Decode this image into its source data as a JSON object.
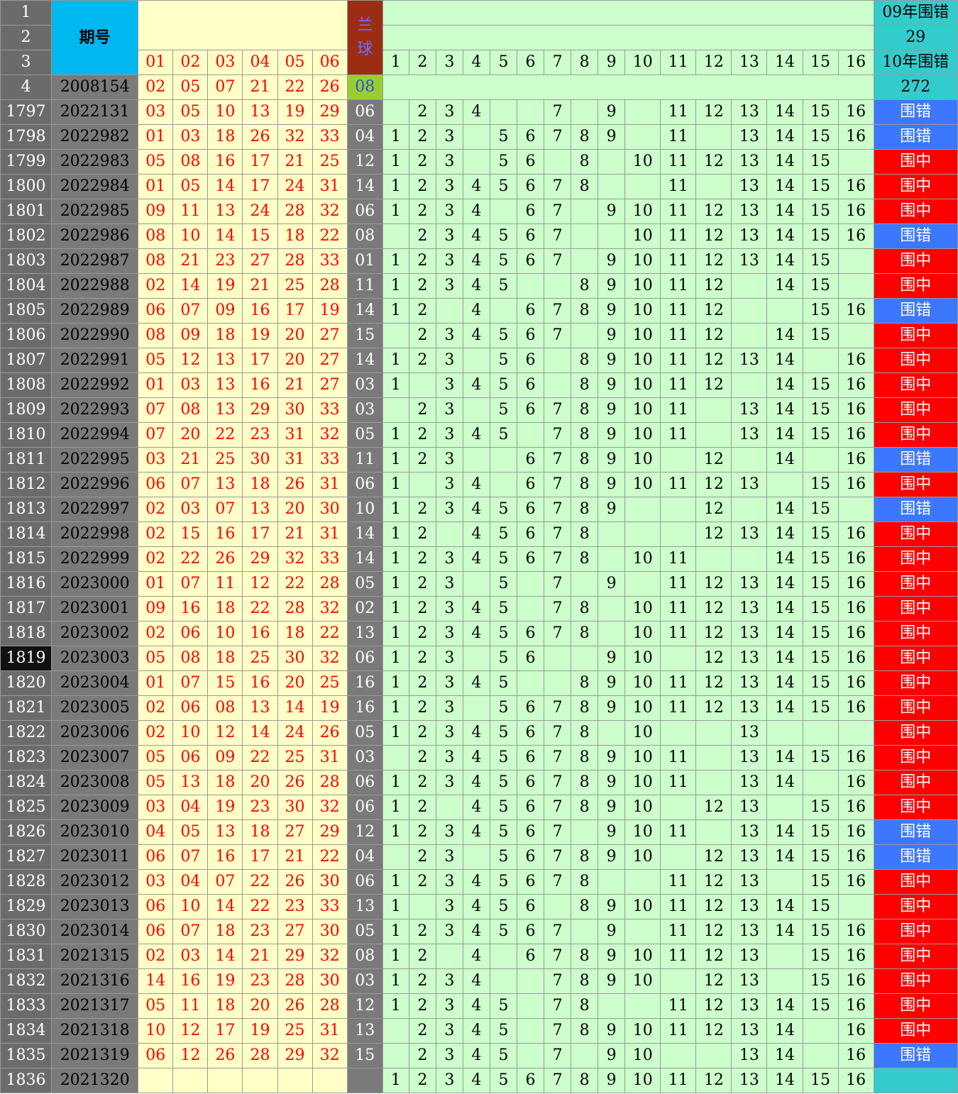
{
  "header": {
    "period_label": "期号",
    "blue_label": "兰球",
    "col_labels": [
      "01",
      "02",
      "03",
      "04",
      "05",
      "06"
    ],
    "num_labels": [
      "1",
      "2",
      "3",
      "4",
      "5",
      "6",
      "7",
      "8",
      "9",
      "10",
      "11",
      "12",
      "13",
      "14",
      "15",
      "16"
    ],
    "stat_2009_label": "09年围错",
    "stat_2009_value": "29",
    "stat_2010_label": "10年围错",
    "stat_2010_value": "272"
  },
  "row_numbers": [
    "1",
    "2",
    "3",
    "4"
  ],
  "first_row": {
    "period": "2008154",
    "reds": [
      "02",
      "05",
      "07",
      "21",
      "22",
      "26"
    ],
    "blue": "08"
  },
  "rows": [
    {
      "n": "1797",
      "period": "2022131",
      "reds": [
        "03",
        "05",
        "10",
        "13",
        "19",
        "29"
      ],
      "blue": "06",
      "nums": [
        "",
        "2",
        "3",
        "4",
        "",
        "",
        "7",
        "",
        "9",
        "",
        "11",
        "12",
        "13",
        "14",
        "15",
        "16"
      ],
      "status": "围错"
    },
    {
      "n": "1798",
      "period": "2022982",
      "reds": [
        "01",
        "03",
        "18",
        "26",
        "32",
        "33"
      ],
      "blue": "04",
      "nums": [
        "1",
        "2",
        "3",
        "",
        "5",
        "6",
        "7",
        "8",
        "9",
        "",
        "11",
        "",
        "13",
        "14",
        "15",
        "16"
      ],
      "status": "围错"
    },
    {
      "n": "1799",
      "period": "2022983",
      "reds": [
        "05",
        "08",
        "16",
        "17",
        "21",
        "25"
      ],
      "blue": "12",
      "nums": [
        "1",
        "2",
        "3",
        "",
        "5",
        "6",
        "",
        "8",
        "",
        "10",
        "11",
        "12",
        "13",
        "14",
        "15",
        ""
      ],
      "status": "围中"
    },
    {
      "n": "1800",
      "period": "2022984",
      "reds": [
        "01",
        "05",
        "14",
        "17",
        "24",
        "31"
      ],
      "blue": "14",
      "nums": [
        "1",
        "2",
        "3",
        "4",
        "5",
        "6",
        "7",
        "8",
        "",
        "",
        "11",
        "",
        "13",
        "14",
        "15",
        "16"
      ],
      "status": "围中"
    },
    {
      "n": "1801",
      "period": "2022985",
      "reds": [
        "09",
        "11",
        "13",
        "24",
        "28",
        "32"
      ],
      "blue": "06",
      "nums": [
        "1",
        "2",
        "3",
        "4",
        "",
        "6",
        "7",
        "",
        "9",
        "10",
        "11",
        "12",
        "13",
        "14",
        "15",
        "16"
      ],
      "status": "围中"
    },
    {
      "n": "1802",
      "period": "2022986",
      "reds": [
        "08",
        "10",
        "14",
        "15",
        "18",
        "22"
      ],
      "blue": "08",
      "nums": [
        "",
        "2",
        "3",
        "4",
        "5",
        "6",
        "7",
        "",
        "",
        "10",
        "11",
        "12",
        "13",
        "14",
        "15",
        "16"
      ],
      "status": "围错"
    },
    {
      "n": "1803",
      "period": "2022987",
      "reds": [
        "08",
        "21",
        "23",
        "27",
        "28",
        "33"
      ],
      "blue": "01",
      "nums": [
        "1",
        "2",
        "3",
        "4",
        "5",
        "6",
        "7",
        "",
        "9",
        "10",
        "11",
        "12",
        "13",
        "14",
        "15",
        ""
      ],
      "status": "围中"
    },
    {
      "n": "1804",
      "period": "2022988",
      "reds": [
        "02",
        "14",
        "19",
        "21",
        "25",
        "28"
      ],
      "blue": "11",
      "nums": [
        "1",
        "2",
        "3",
        "4",
        "5",
        "",
        "",
        "8",
        "9",
        "10",
        "11",
        "12",
        "",
        "14",
        "15",
        ""
      ],
      "status": "围中"
    },
    {
      "n": "1805",
      "period": "2022989",
      "reds": [
        "06",
        "07",
        "09",
        "16",
        "17",
        "19"
      ],
      "blue": "14",
      "nums": [
        "1",
        "2",
        "",
        "4",
        "",
        "6",
        "7",
        "8",
        "9",
        "10",
        "11",
        "12",
        "",
        "",
        "15",
        "16"
      ],
      "status": "围错"
    },
    {
      "n": "1806",
      "period": "2022990",
      "reds": [
        "08",
        "09",
        "18",
        "19",
        "20",
        "27"
      ],
      "blue": "15",
      "nums": [
        "",
        "2",
        "3",
        "4",
        "5",
        "6",
        "7",
        "",
        "9",
        "10",
        "11",
        "12",
        "",
        "14",
        "15",
        ""
      ],
      "status": "围中"
    },
    {
      "n": "1807",
      "period": "2022991",
      "reds": [
        "05",
        "12",
        "13",
        "17",
        "20",
        "27"
      ],
      "blue": "14",
      "nums": [
        "1",
        "2",
        "3",
        "",
        "5",
        "6",
        "",
        "8",
        "9",
        "10",
        "11",
        "12",
        "13",
        "14",
        "",
        "16"
      ],
      "status": "围中"
    },
    {
      "n": "1808",
      "period": "2022992",
      "reds": [
        "01",
        "03",
        "13",
        "16",
        "21",
        "27"
      ],
      "blue": "03",
      "nums": [
        "1",
        "",
        "3",
        "4",
        "5",
        "6",
        "",
        "8",
        "9",
        "10",
        "11",
        "12",
        "",
        "14",
        "15",
        "16"
      ],
      "status": "围中"
    },
    {
      "n": "1809",
      "period": "2022993",
      "reds": [
        "07",
        "08",
        "13",
        "29",
        "30",
        "33"
      ],
      "blue": "03",
      "nums": [
        "",
        "2",
        "3",
        "",
        "5",
        "6",
        "7",
        "8",
        "9",
        "10",
        "11",
        "",
        "13",
        "14",
        "15",
        "16"
      ],
      "status": "围中"
    },
    {
      "n": "1810",
      "period": "2022994",
      "reds": [
        "07",
        "20",
        "22",
        "23",
        "31",
        "32"
      ],
      "blue": "05",
      "nums": [
        "1",
        "2",
        "3",
        "4",
        "5",
        "",
        "7",
        "8",
        "9",
        "10",
        "11",
        "",
        "13",
        "14",
        "15",
        "16"
      ],
      "status": "围中"
    },
    {
      "n": "1811",
      "period": "2022995",
      "reds": [
        "03",
        "21",
        "25",
        "30",
        "31",
        "33"
      ],
      "blue": "11",
      "nums": [
        "1",
        "2",
        "3",
        "",
        "",
        "6",
        "7",
        "8",
        "9",
        "10",
        "",
        "12",
        "",
        "14",
        "",
        "16"
      ],
      "status": "围错"
    },
    {
      "n": "1812",
      "period": "2022996",
      "reds": [
        "06",
        "07",
        "13",
        "18",
        "26",
        "31"
      ],
      "blue": "06",
      "nums": [
        "1",
        "",
        "3",
        "4",
        "",
        "6",
        "7",
        "8",
        "9",
        "10",
        "11",
        "12",
        "13",
        "",
        "15",
        "16"
      ],
      "status": "围中"
    },
    {
      "n": "1813",
      "period": "2022997",
      "reds": [
        "02",
        "03",
        "07",
        "13",
        "20",
        "30"
      ],
      "blue": "10",
      "nums": [
        "1",
        "2",
        "3",
        "4",
        "5",
        "6",
        "7",
        "8",
        "9",
        "",
        "",
        "12",
        "",
        "14",
        "15",
        ""
      ],
      "status": "围错"
    },
    {
      "n": "1814",
      "period": "2022998",
      "reds": [
        "02",
        "15",
        "16",
        "17",
        "21",
        "31"
      ],
      "blue": "14",
      "nums": [
        "1",
        "2",
        "",
        "4",
        "5",
        "6",
        "7",
        "8",
        "",
        "",
        "",
        "12",
        "13",
        "14",
        "15",
        "16"
      ],
      "status": "围中"
    },
    {
      "n": "1815",
      "period": "2022999",
      "reds": [
        "02",
        "22",
        "26",
        "29",
        "32",
        "33"
      ],
      "blue": "14",
      "nums": [
        "1",
        "2",
        "3",
        "4",
        "5",
        "6",
        "7",
        "8",
        "",
        "10",
        "11",
        "",
        "",
        "14",
        "15",
        "16"
      ],
      "status": "围中"
    },
    {
      "n": "1816",
      "period": "2023000",
      "reds": [
        "01",
        "07",
        "11",
        "12",
        "22",
        "28"
      ],
      "blue": "05",
      "nums": [
        "1",
        "2",
        "3",
        "",
        "5",
        "",
        "7",
        "",
        "9",
        "",
        "11",
        "12",
        "13",
        "14",
        "15",
        "16"
      ],
      "status": "围中"
    },
    {
      "n": "1817",
      "period": "2023001",
      "reds": [
        "09",
        "16",
        "18",
        "22",
        "28",
        "32"
      ],
      "blue": "02",
      "nums": [
        "1",
        "2",
        "3",
        "4",
        "5",
        "",
        "7",
        "8",
        "",
        "10",
        "11",
        "12",
        "13",
        "14",
        "15",
        "16"
      ],
      "status": "围中"
    },
    {
      "n": "1818",
      "period": "2023002",
      "reds": [
        "02",
        "06",
        "10",
        "16",
        "18",
        "22"
      ],
      "blue": "13",
      "nums": [
        "1",
        "2",
        "3",
        "4",
        "5",
        "6",
        "7",
        "8",
        "",
        "10",
        "11",
        "12",
        "13",
        "14",
        "15",
        "16"
      ],
      "status": "围中"
    },
    {
      "n": "1819",
      "period": "2023003",
      "reds": [
        "05",
        "08",
        "18",
        "25",
        "30",
        "32"
      ],
      "blue": "06",
      "nums": [
        "1",
        "2",
        "3",
        "",
        "5",
        "6",
        "",
        "",
        "9",
        "10",
        "",
        "12",
        "13",
        "14",
        "15",
        "16"
      ],
      "status": "围中",
      "selected": true
    },
    {
      "n": "1820",
      "period": "2023004",
      "reds": [
        "01",
        "07",
        "15",
        "16",
        "20",
        "25"
      ],
      "blue": "16",
      "nums": [
        "1",
        "2",
        "3",
        "4",
        "5",
        "",
        "",
        "8",
        "9",
        "10",
        "11",
        "12",
        "13",
        "14",
        "15",
        "16"
      ],
      "status": "围中"
    },
    {
      "n": "1821",
      "period": "2023005",
      "reds": [
        "02",
        "06",
        "08",
        "13",
        "14",
        "19"
      ],
      "blue": "16",
      "nums": [
        "1",
        "2",
        "3",
        "",
        "5",
        "6",
        "7",
        "8",
        "9",
        "10",
        "11",
        "12",
        "13",
        "14",
        "15",
        "16"
      ],
      "status": "围中"
    },
    {
      "n": "1822",
      "period": "2023006",
      "reds": [
        "02",
        "10",
        "12",
        "14",
        "24",
        "26"
      ],
      "blue": "05",
      "nums": [
        "1",
        "2",
        "3",
        "4",
        "5",
        "6",
        "7",
        "8",
        "",
        "10",
        "",
        "",
        "13",
        "",
        "",
        ""
      ],
      "status": "围中"
    },
    {
      "n": "1823",
      "period": "2023007",
      "reds": [
        "05",
        "06",
        "09",
        "22",
        "25",
        "31"
      ],
      "blue": "03",
      "nums": [
        "",
        "2",
        "3",
        "4",
        "5",
        "6",
        "7",
        "8",
        "9",
        "10",
        "11",
        "",
        "13",
        "14",
        "15",
        "16"
      ],
      "status": "围中"
    },
    {
      "n": "1824",
      "period": "2023008",
      "reds": [
        "05",
        "13",
        "18",
        "20",
        "26",
        "28"
      ],
      "blue": "06",
      "nums": [
        "1",
        "2",
        "3",
        "4",
        "5",
        "6",
        "7",
        "8",
        "9",
        "10",
        "11",
        "",
        "13",
        "14",
        "",
        "16"
      ],
      "status": "围中"
    },
    {
      "n": "1825",
      "period": "2023009",
      "reds": [
        "03",
        "04",
        "19",
        "23",
        "30",
        "32"
      ],
      "blue": "06",
      "nums": [
        "1",
        "2",
        "",
        "4",
        "5",
        "6",
        "7",
        "8",
        "9",
        "10",
        "",
        "12",
        "13",
        "",
        "15",
        "16"
      ],
      "status": "围中"
    },
    {
      "n": "1826",
      "period": "2023010",
      "reds": [
        "04",
        "05",
        "13",
        "18",
        "27",
        "29"
      ],
      "blue": "12",
      "nums": [
        "1",
        "2",
        "3",
        "4",
        "5",
        "6",
        "7",
        "",
        "9",
        "10",
        "11",
        "",
        "13",
        "14",
        "15",
        "16"
      ],
      "status": "围错"
    },
    {
      "n": "1827",
      "period": "2023011",
      "reds": [
        "06",
        "07",
        "16",
        "17",
        "21",
        "22"
      ],
      "blue": "04",
      "nums": [
        "",
        "2",
        "3",
        "",
        "5",
        "6",
        "7",
        "8",
        "9",
        "10",
        "",
        "12",
        "13",
        "14",
        "15",
        "16"
      ],
      "status": "围错"
    },
    {
      "n": "1828",
      "period": "2023012",
      "reds": [
        "03",
        "04",
        "07",
        "22",
        "26",
        "30"
      ],
      "blue": "06",
      "nums": [
        "1",
        "2",
        "3",
        "4",
        "5",
        "6",
        "7",
        "8",
        "",
        "",
        "11",
        "12",
        "13",
        "",
        "15",
        "16"
      ],
      "status": "围中"
    },
    {
      "n": "1829",
      "period": "2023013",
      "reds": [
        "06",
        "10",
        "14",
        "22",
        "23",
        "33"
      ],
      "blue": "13",
      "nums": [
        "1",
        "",
        "3",
        "4",
        "5",
        "6",
        "",
        "8",
        "9",
        "10",
        "11",
        "12",
        "13",
        "14",
        "15",
        ""
      ],
      "status": "围中"
    },
    {
      "n": "1830",
      "period": "2023014",
      "reds": [
        "06",
        "07",
        "18",
        "23",
        "27",
        "30"
      ],
      "blue": "05",
      "nums": [
        "1",
        "2",
        "3",
        "4",
        "5",
        "6",
        "7",
        "",
        "9",
        "",
        "11",
        "12",
        "13",
        "14",
        "15",
        "16"
      ],
      "status": "围中"
    },
    {
      "n": "1831",
      "period": "2021315",
      "reds": [
        "02",
        "03",
        "14",
        "21",
        "29",
        "32"
      ],
      "blue": "08",
      "nums": [
        "1",
        "2",
        "",
        "4",
        "",
        "6",
        "7",
        "8",
        "9",
        "10",
        "11",
        "12",
        "13",
        "",
        "15",
        "16"
      ],
      "status": "围中"
    },
    {
      "n": "1832",
      "period": "2021316",
      "reds": [
        "14",
        "16",
        "19",
        "23",
        "28",
        "30"
      ],
      "blue": "03",
      "nums": [
        "1",
        "2",
        "3",
        "4",
        "",
        "",
        "7",
        "8",
        "9",
        "10",
        "",
        "12",
        "13",
        "",
        "15",
        "16"
      ],
      "status": "围中"
    },
    {
      "n": "1833",
      "period": "2021317",
      "reds": [
        "05",
        "11",
        "18",
        "20",
        "26",
        "28"
      ],
      "blue": "12",
      "nums": [
        "1",
        "2",
        "3",
        "4",
        "5",
        "",
        "7",
        "8",
        "",
        "",
        "11",
        "12",
        "13",
        "14",
        "15",
        "16"
      ],
      "status": "围中"
    },
    {
      "n": "1834",
      "period": "2021318",
      "reds": [
        "10",
        "12",
        "17",
        "19",
        "25",
        "31"
      ],
      "blue": "13",
      "nums": [
        "",
        "2",
        "3",
        "4",
        "5",
        "",
        "7",
        "8",
        "9",
        "10",
        "11",
        "12",
        "13",
        "14",
        "",
        "16"
      ],
      "status": "围中"
    },
    {
      "n": "1835",
      "period": "2021319",
      "reds": [
        "06",
        "12",
        "26",
        "28",
        "29",
        "32"
      ],
      "blue": "15",
      "nums": [
        "",
        "2",
        "3",
        "4",
        "5",
        "",
        "7",
        "",
        "9",
        "10",
        "",
        "",
        "13",
        "14",
        "",
        "16"
      ],
      "status": "围错"
    }
  ],
  "last_row": {
    "n": "1836",
    "period": "2021320",
    "nums": [
      "1",
      "2",
      "3",
      "4",
      "5",
      "6",
      "7",
      "8",
      "9",
      "10",
      "11",
      "12",
      "13",
      "14",
      "15",
      "16"
    ]
  }
}
